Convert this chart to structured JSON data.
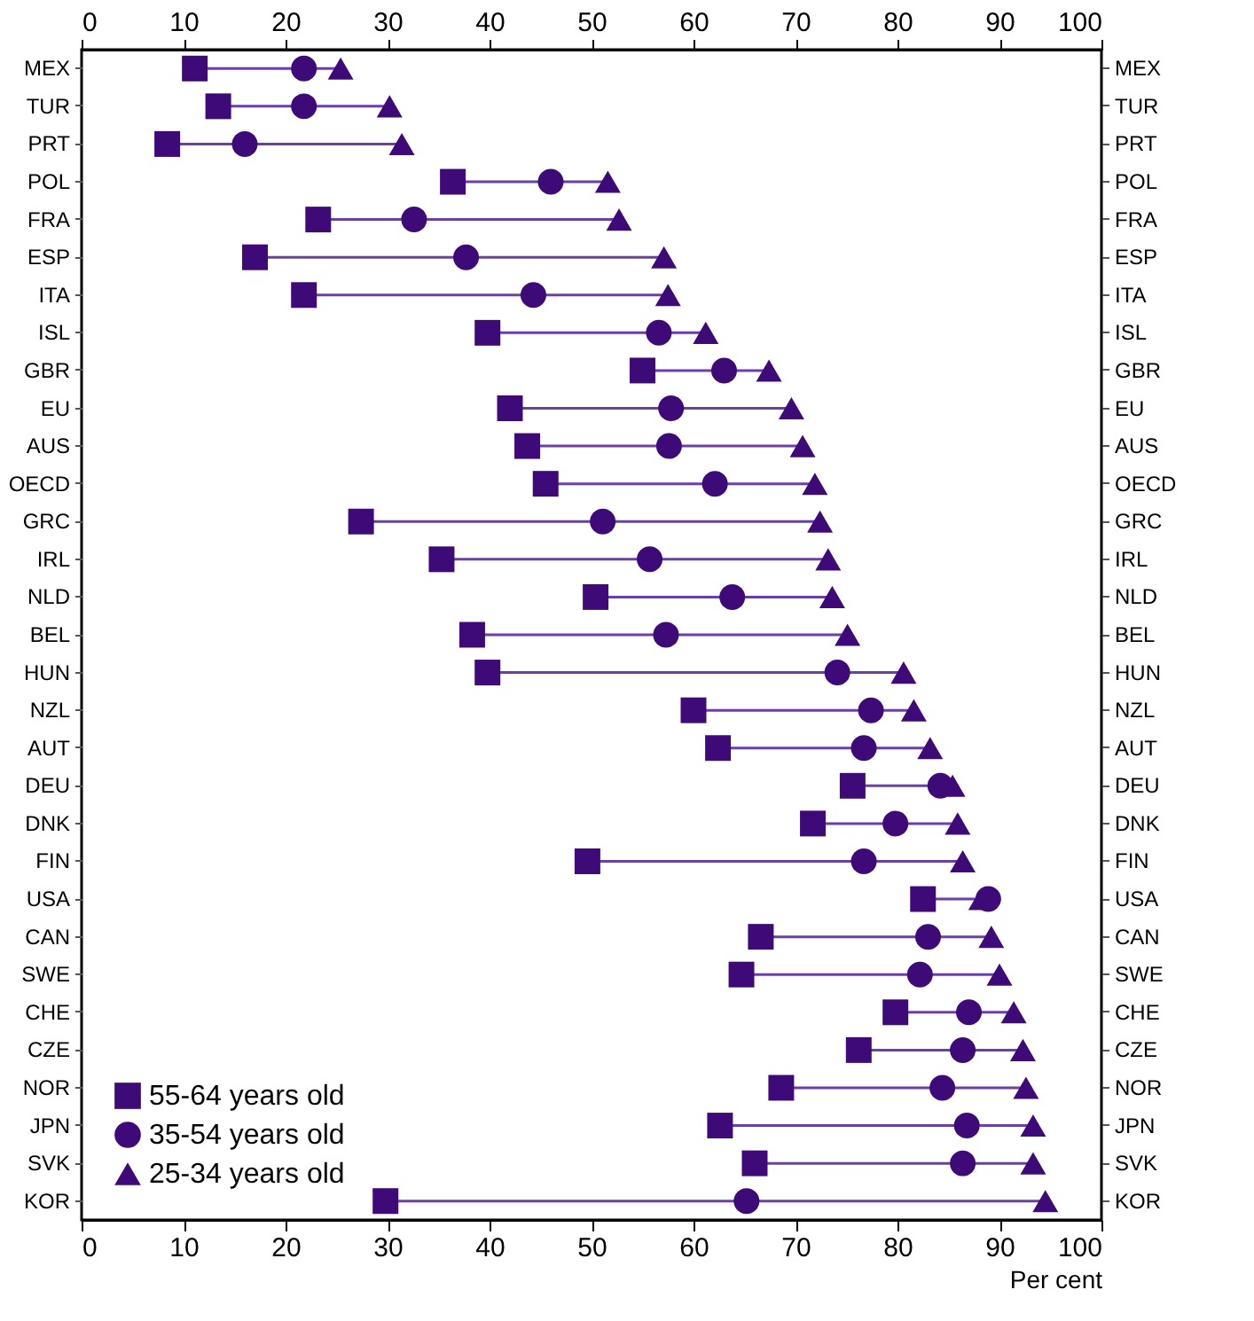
{
  "chart_data": {
    "type": "scatter",
    "orientation": "horizontal",
    "xlabel": "Per cent",
    "legend": "bottom left",
    "grid": false,
    "categories": [
      "MEX",
      "TUR",
      "PRT",
      "POL",
      "FRA",
      "ESP",
      "ITA",
      "ISL",
      "GBR",
      "EU",
      "AUS",
      "OECD",
      "GRC",
      "IRL",
      "NLD",
      "BEL",
      "HUN",
      "NZL",
      "AUT",
      "DEU",
      "DNK",
      "FIN",
      "USA",
      "CAN",
      "SWE",
      "CHE",
      "CZE",
      "NOR",
      "JPN",
      "SVK",
      "KOR"
    ],
    "series": [
      {
        "name": "55-64 years old",
        "color": "#3d0a78",
        "marker": "square",
        "values": [
          11.1,
          13.4,
          8.4,
          36.4,
          23.2,
          17,
          21.8,
          39.8,
          55,
          42,
          43.7,
          45.5,
          27.4,
          35.3,
          50.4,
          38.3,
          39.8,
          60,
          62.4,
          75.6,
          71.7,
          49.6,
          82.5,
          66.6,
          64.7,
          79.8,
          76.2,
          68.6,
          62.6,
          66,
          29.8
        ]
      },
      {
        "name": "35-54 years old",
        "color": "#3d0a78",
        "marker": "circle",
        "values": [
          21.8,
          21.8,
          16,
          46,
          32.6,
          37.7,
          44.3,
          56.6,
          63,
          57.8,
          57.6,
          62.1,
          51.1,
          55.7,
          63.8,
          57.3,
          74.1,
          77.4,
          76.7,
          84.2,
          79.8,
          76.7,
          88.9,
          83,
          82.2,
          87,
          86.4,
          84.4,
          86.8,
          86.4,
          65.2
        ]
      },
      {
        "name": "25-34 years old",
        "color": "#3d0a78",
        "marker": "triangle",
        "values": [
          25.4,
          30.2,
          31.4,
          51.6,
          52.7,
          57.1,
          57.5,
          61.2,
          67.4,
          69.6,
          70.7,
          71.9,
          72.4,
          73.2,
          73.6,
          75.1,
          80.6,
          81.6,
          83.2,
          85.4,
          85.9,
          86.4,
          88.2,
          89.2,
          90,
          91.4,
          92.3,
          92.6,
          93.3,
          93.3,
          94.5
        ]
      }
    ],
    "xlim": [
      0,
      100
    ],
    "xticks": [
      0,
      10,
      20,
      30,
      40,
      50,
      60,
      70,
      80,
      90,
      100
    ],
    "x2lim": [
      0,
      100
    ],
    "x2ticks": [
      0,
      10,
      20,
      30,
      40,
      50,
      60,
      70,
      80,
      90,
      100
    ]
  }
}
